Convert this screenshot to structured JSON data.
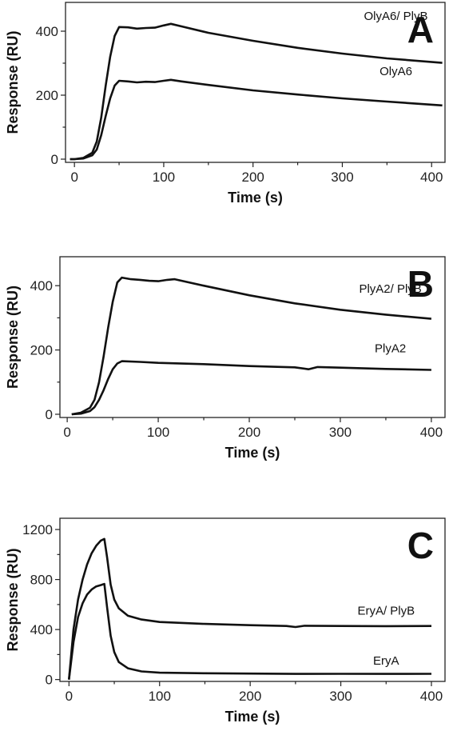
{
  "chart_data": [
    {
      "type": "line",
      "panel_label": "A",
      "xlabel": "Time (s)",
      "ylabel": "Response (RU)",
      "xlim": [
        -10,
        415
      ],
      "ylim": [
        -10,
        490
      ],
      "xticks": [
        0,
        100,
        200,
        300,
        400
      ],
      "yticks": [
        0,
        200,
        400
      ],
      "series": [
        {
          "name": "OlyA6/ PlyB",
          "label_at": [
            360,
            435
          ],
          "points": [
            [
              -5,
              0
            ],
            [
              0,
              0
            ],
            [
              10,
              4
            ],
            [
              20,
              20
            ],
            [
              25,
              55
            ],
            [
              30,
              130
            ],
            [
              35,
              230
            ],
            [
              40,
              320
            ],
            [
              45,
              385
            ],
            [
              50,
              413
            ],
            [
              60,
              412
            ],
            [
              70,
              408
            ],
            [
              80,
              410
            ],
            [
              90,
              411
            ],
            [
              100,
              418
            ],
            [
              108,
              423
            ],
            [
              120,
              415
            ],
            [
              150,
              395
            ],
            [
              200,
              370
            ],
            [
              250,
              348
            ],
            [
              300,
              330
            ],
            [
              350,
              315
            ],
            [
              412,
              301
            ]
          ]
        },
        {
          "name": "OlyA6",
          "label_at": [
            360,
            262
          ],
          "points": [
            [
              -5,
              0
            ],
            [
              0,
              0
            ],
            [
              10,
              2
            ],
            [
              20,
              12
            ],
            [
              25,
              30
            ],
            [
              30,
              75
            ],
            [
              35,
              135
            ],
            [
              40,
              190
            ],
            [
              45,
              230
            ],
            [
              50,
              245
            ],
            [
              60,
              243
            ],
            [
              70,
              240
            ],
            [
              80,
              242
            ],
            [
              90,
              241
            ],
            [
              100,
              245
            ],
            [
              108,
              248
            ],
            [
              120,
              243
            ],
            [
              150,
              232
            ],
            [
              200,
              215
            ],
            [
              250,
              202
            ],
            [
              300,
              190
            ],
            [
              350,
              180
            ],
            [
              412,
              168
            ]
          ]
        }
      ]
    },
    {
      "type": "line",
      "panel_label": "B",
      "xlabel": "Time (s)",
      "ylabel": "Response (RU)",
      "xlim": [
        -8,
        415
      ],
      "ylim": [
        -10,
        490
      ],
      "xticks": [
        0,
        100,
        200,
        300,
        400
      ],
      "yticks": [
        0,
        200,
        400
      ],
      "series": [
        {
          "name": "PlyA2/ PlyB",
          "label_at": [
            355,
            378
          ],
          "points": [
            [
              5,
              0
            ],
            [
              15,
              5
            ],
            [
              25,
              20
            ],
            [
              30,
              45
            ],
            [
              35,
              100
            ],
            [
              40,
              180
            ],
            [
              45,
              270
            ],
            [
              50,
              350
            ],
            [
              55,
              410
            ],
            [
              60,
              425
            ],
            [
              70,
              420
            ],
            [
              80,
              418
            ],
            [
              90,
              415
            ],
            [
              100,
              414
            ],
            [
              110,
              418
            ],
            [
              118,
              420
            ],
            [
              150,
              400
            ],
            [
              200,
              370
            ],
            [
              250,
              345
            ],
            [
              300,
              325
            ],
            [
              350,
              310
            ],
            [
              400,
              297
            ]
          ]
        },
        {
          "name": "PlyA2",
          "label_at": [
            355,
            193
          ],
          "points": [
            [
              5,
              0
            ],
            [
              15,
              2
            ],
            [
              25,
              10
            ],
            [
              30,
              22
            ],
            [
              35,
              45
            ],
            [
              40,
              75
            ],
            [
              45,
              110
            ],
            [
              50,
              140
            ],
            [
              55,
              158
            ],
            [
              60,
              165
            ],
            [
              80,
              163
            ],
            [
              100,
              160
            ],
            [
              150,
              156
            ],
            [
              200,
              150
            ],
            [
              250,
              146
            ],
            [
              265,
              140
            ],
            [
              275,
              147
            ],
            [
              300,
              145
            ],
            [
              350,
              141
            ],
            [
              400,
              138
            ]
          ]
        }
      ]
    },
    {
      "type": "line",
      "panel_label": "C",
      "xlabel": "Time (s)",
      "ylabel": "Response (RU)",
      "xlim": [
        -10,
        415
      ],
      "ylim": [
        -15,
        1290
      ],
      "xticks": [
        0,
        100,
        200,
        300,
        400
      ],
      "yticks": [
        0,
        400,
        800,
        1200
      ],
      "series": [
        {
          "name": "EryA/ PlyB",
          "label_at": [
            350,
            520
          ],
          "points": [
            [
              0,
              0
            ],
            [
              5,
              400
            ],
            [
              10,
              640
            ],
            [
              15,
              800
            ],
            [
              20,
              920
            ],
            [
              25,
              1010
            ],
            [
              30,
              1070
            ],
            [
              35,
              1110
            ],
            [
              39,
              1125
            ],
            [
              42,
              980
            ],
            [
              46,
              760
            ],
            [
              50,
              640
            ],
            [
              55,
              570
            ],
            [
              65,
              510
            ],
            [
              80,
              480
            ],
            [
              100,
              460
            ],
            [
              150,
              445
            ],
            [
              200,
              435
            ],
            [
              240,
              428
            ],
            [
              250,
              420
            ],
            [
              260,
              430
            ],
            [
              300,
              428
            ],
            [
              350,
              427
            ],
            [
              400,
              428
            ]
          ]
        },
        {
          "name": "EryA",
          "label_at": [
            350,
            120
          ],
          "points": [
            [
              0,
              0
            ],
            [
              5,
              300
            ],
            [
              10,
              500
            ],
            [
              15,
              610
            ],
            [
              20,
              680
            ],
            [
              25,
              720
            ],
            [
              30,
              745
            ],
            [
              35,
              755
            ],
            [
              39,
              765
            ],
            [
              42,
              580
            ],
            [
              46,
              350
            ],
            [
              50,
              220
            ],
            [
              55,
              140
            ],
            [
              65,
              90
            ],
            [
              80,
              65
            ],
            [
              100,
              55
            ],
            [
              150,
              50
            ],
            [
              200,
              48
            ],
            [
              250,
              45
            ],
            [
              300,
              46
            ],
            [
              350,
              45
            ],
            [
              400,
              46
            ]
          ]
        }
      ]
    }
  ]
}
